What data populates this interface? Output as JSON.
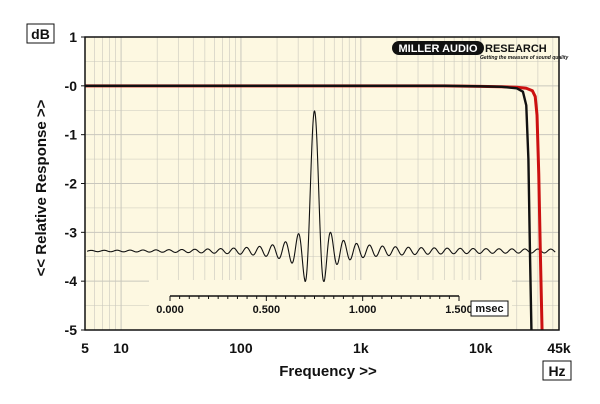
{
  "chart_data": {
    "type": "line",
    "title": "",
    "xlabel": "Frequency >>",
    "ylabel": "<< Relative Response >>",
    "x_unit": "Hz",
    "y_unit": "dB",
    "x_scale": "log",
    "xlim": [
      5,
      45000
    ],
    "ylim": [
      -5,
      1
    ],
    "grid": true,
    "x_ticks": [
      {
        "value": 5,
        "label": "5"
      },
      {
        "value": 10,
        "label": "10"
      },
      {
        "value": 100,
        "label": "100"
      },
      {
        "value": 1000,
        "label": "1k"
      },
      {
        "value": 10000,
        "label": "10k"
      },
      {
        "value": 45000,
        "label": "45k"
      }
    ],
    "y_ticks": [
      {
        "value": 1,
        "label": "1"
      },
      {
        "value": 0,
        "label": "-0"
      },
      {
        "value": -1,
        "label": "-1"
      },
      {
        "value": -2,
        "label": "-2"
      },
      {
        "value": -3,
        "label": "-3"
      },
      {
        "value": -4,
        "label": "-4"
      },
      {
        "value": -5,
        "label": "-5"
      }
    ],
    "series": [
      {
        "color": "#cc1111",
        "x": [
          5,
          20,
          100,
          1000,
          5000,
          10000,
          15000,
          20000,
          24000,
          27000,
          28500,
          29500,
          30500,
          31500,
          32500
        ],
        "y": [
          0,
          0,
          0,
          0,
          0,
          -0.01,
          -0.02,
          -0.03,
          -0.05,
          -0.1,
          -0.22,
          -0.6,
          -1.8,
          -3.5,
          -5
        ]
      },
      {
        "color": "#111111",
        "x": [
          5,
          20,
          100,
          1000,
          5000,
          10000,
          15000,
          20000,
          22500,
          24000,
          25000,
          25800,
          26500
        ],
        "y": [
          0,
          0,
          0,
          0,
          0,
          -0.01,
          -0.02,
          -0.05,
          -0.12,
          -0.4,
          -1.5,
          -3.5,
          -5
        ]
      }
    ],
    "inset": {
      "type": "line",
      "description_units": "msec",
      "x_unit_label": "msec",
      "x_ticks": [
        {
          "value": 0.0,
          "label": "0.000"
        },
        {
          "value": 0.5,
          "label": "0.500"
        },
        {
          "value": 1.0,
          "label": "1.000"
        },
        {
          "value": 1.5,
          "label": "1.500"
        }
      ],
      "xlim": [
        0,
        1.5
      ],
      "peak_time": 0.75,
      "ripple_period": 0.0336
    }
  },
  "branding": {
    "logo_left": "MILLER AUDIO",
    "logo_right": "RESEARCH",
    "tagline": "Getting the measure of sound quality"
  },
  "colors": {
    "plot_background": "#fdf8e1",
    "grid": "#c9c7bd",
    "black_trace": "#111111",
    "red_trace": "#cc1111"
  }
}
